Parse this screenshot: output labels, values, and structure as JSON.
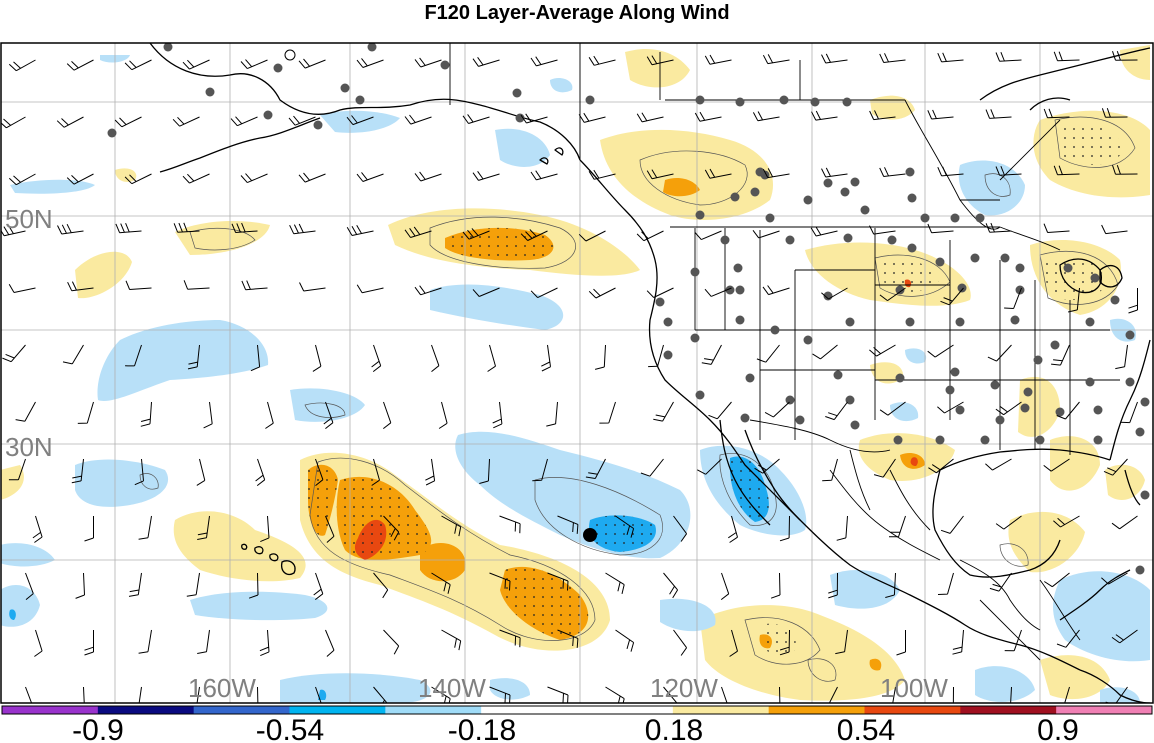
{
  "title": "F120 Layer-Average Along Wind",
  "map": {
    "lat_labels": [
      "50N",
      "30N"
    ],
    "lon_labels": [
      "160W",
      "140W",
      "120W",
      "100W"
    ]
  },
  "colorbar": {
    "tick_labels": [
      "-0.9",
      "-0.54",
      "-0.18",
      "0.18",
      "0.54",
      "0.9"
    ],
    "colors": [
      "#9933cc",
      "#0a0a80",
      "#3366cc",
      "#00b4f0",
      "#a0dcf8",
      "#ffffff",
      "#ffffff",
      "#faeaa0",
      "#f5a00a",
      "#e84810",
      "#a01020",
      "#f080b4"
    ]
  },
  "colors": {
    "light_blue": "#b8e0f8",
    "blue": "#1eaaf0",
    "light_yellow": "#faeaa0",
    "orange": "#f5a00a",
    "red_orange": "#e84810",
    "station": "#555555"
  }
}
